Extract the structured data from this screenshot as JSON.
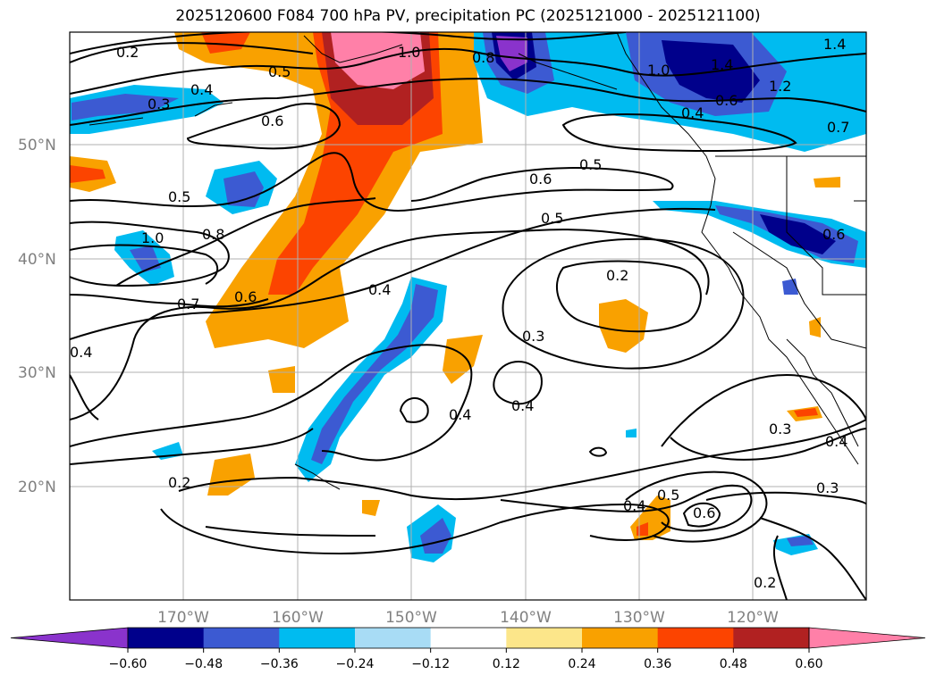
{
  "title": "2025120600 F084 700 hPa PV, precipitation PC (2025121000 - 2025121100)",
  "lat_labels": [
    "50°N",
    "40°N",
    "30°N",
    "20°N"
  ],
  "lon_labels": [
    "170°W",
    "160°W",
    "150°W",
    "140°W",
    "130°W",
    "120°W"
  ],
  "colorbar": {
    "colors": [
      "#8a33cc",
      "#00008b",
      "#3c5ad2",
      "#00bbf0",
      "#a8dcf5",
      "#ffffff",
      "#fce68a",
      "#f9a100",
      "#fc4400",
      "#b12121",
      "#ff80a8"
    ],
    "ticks": [
      "−0.60",
      "−0.48",
      "−0.36",
      "−0.24",
      "−0.12",
      "0.12",
      "0.24",
      "0.36",
      "0.48",
      "0.60"
    ]
  },
  "contour_labels": [
    "0.2",
    "0.5",
    "1.0",
    "0.8",
    "1.0",
    "1.4",
    "1.4",
    "1.2",
    "0.6",
    "0.4",
    "0.7",
    "0.4",
    "0.3",
    "0.6",
    "0.5",
    "0.6",
    "0.5",
    "0.5",
    "1.0",
    "0.8",
    "0.7",
    "0.6",
    "0.4",
    "0.2",
    "0.3",
    "0.4",
    "0.4",
    "0.3",
    "0.4",
    "0.3",
    "0.2",
    "0.4",
    "0.5",
    "0.6",
    "0.2",
    "0.4",
    "0.6"
  ],
  "colors": {
    "frame": "#000000",
    "grid": "#b0b0b0",
    "coast": "#000000"
  }
}
